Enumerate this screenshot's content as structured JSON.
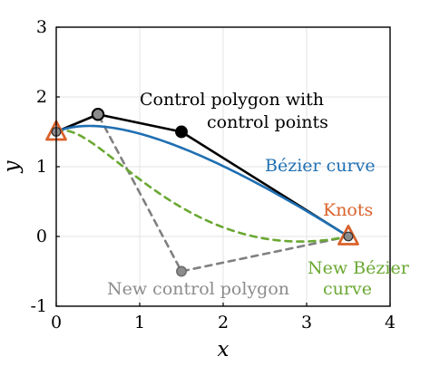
{
  "chart_data": {
    "type": "line",
    "xlabel": "x",
    "ylabel": "y",
    "xlim": [
      0,
      4
    ],
    "ylim": [
      -1,
      3
    ],
    "x_ticks": [
      0,
      1,
      2,
      3,
      4
    ],
    "y_ticks": [
      -1,
      0,
      1,
      2,
      3
    ],
    "grid": true,
    "series": [
      {
        "name": "Control polygon with control points",
        "kind": "polyline",
        "points": [
          [
            0,
            1.5
          ],
          [
            0.5,
            1.75
          ],
          [
            1.5,
            1.5
          ],
          [
            3.5,
            0
          ]
        ],
        "color": "#000000",
        "dashed": false
      },
      {
        "name": "Bézier curve",
        "kind": "bezier",
        "points": [
          [
            0,
            1.5
          ],
          [
            0.5,
            1.75
          ],
          [
            1.5,
            1.5
          ],
          [
            3.5,
            0
          ]
        ],
        "color": "#1f6fb2",
        "dashed": false
      },
      {
        "name": "New control polygon",
        "kind": "polyline",
        "points": [
          [
            0,
            1.5
          ],
          [
            0.5,
            1.75
          ],
          [
            1.5,
            -0.5
          ],
          [
            3.5,
            0
          ]
        ],
        "color": "#808080",
        "dashed": true
      },
      {
        "name": "New Bézier curve",
        "kind": "bezier",
        "points": [
          [
            0,
            1.5
          ],
          [
            0.5,
            1.75
          ],
          [
            1.5,
            -0.5
          ],
          [
            3.5,
            0
          ]
        ],
        "color": "#6aa832",
        "dashed": true
      }
    ],
    "knots": [
      [
        0,
        1.5
      ],
      [
        3.5,
        0
      ]
    ],
    "control_points": [
      [
        0.5,
        1.75
      ],
      [
        1.5,
        1.5
      ]
    ],
    "new_control_points": [
      [
        0.5,
        1.75
      ],
      [
        1.5,
        -0.5
      ]
    ],
    "annotations": {
      "control_polygon": {
        "line1": "Control polygon with",
        "line2": "control points",
        "color": "#000000"
      },
      "bezier": {
        "text": "Bézier curve",
        "color": "#1f6fb2"
      },
      "knots": {
        "text": "Knots",
        "color": "#d9622b"
      },
      "new_bezier": {
        "line1": "New Bézier",
        "line2": "curve",
        "color": "#6aa832"
      },
      "new_control_polygon": {
        "text": "New control polygon",
        "color": "#8c8c8c"
      }
    },
    "colors": {
      "axes": "#000000",
      "grid": "#e3e3e3",
      "knot_fill": "#8c8c8c",
      "knot_marker": "#d9622b",
      "control_point": "#000000",
      "new_control_point": "#8c8c8c",
      "new_control_point_stroke": "#6b6b6b"
    }
  }
}
